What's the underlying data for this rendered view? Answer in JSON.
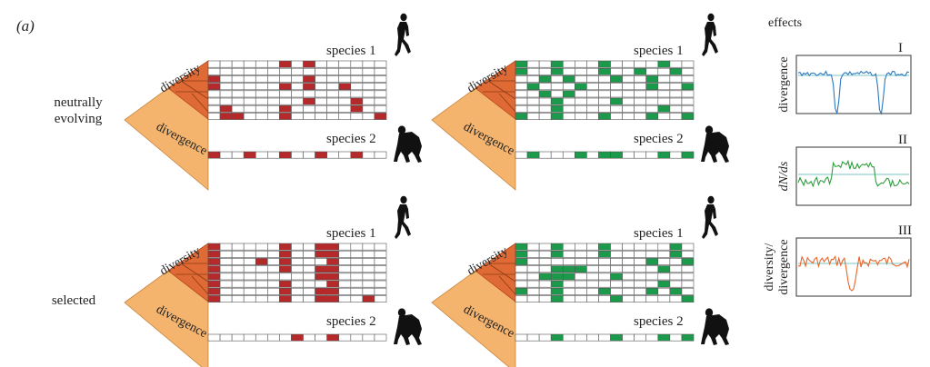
{
  "panel_label": "(a)",
  "row_labels": {
    "neutral_line1": "neutrally",
    "neutral_line2": "evolving",
    "selected": "selected"
  },
  "tree_labels": {
    "diversity": "diversity",
    "divergence": "divergence"
  },
  "species_labels": {
    "species1": "species 1",
    "species2": "species 2"
  },
  "effects": {
    "title": "effects",
    "plots": [
      {
        "numeral": "I",
        "ylabel_lines": [
          "divergence"
        ]
      },
      {
        "numeral": "II",
        "ylabel_lines": [
          "dN/ds"
        ]
      },
      {
        "numeral": "III",
        "ylabel_lines": [
          "diversity/",
          "divergence"
        ]
      }
    ]
  },
  "colors": {
    "red_site": "#b5292b",
    "green_site": "#1a9a4a",
    "tree_light": "#f5b46e",
    "tree_dark": "#e06a35",
    "plot_blue": "#2a78c0",
    "plot_green": "#2e9e3e",
    "plot_orange": "#e8662b",
    "baseline": "#4bb3b3"
  },
  "sequence_panels": [
    {
      "id": "neutral-red",
      "color": "red_site",
      "polymorphic_sites": [
        [
          6,
          8
        ],
        [],
        [
          0,
          8
        ],
        [
          0,
          6,
          8,
          11
        ],
        [],
        [
          8,
          12
        ],
        [
          1,
          6,
          12
        ],
        [
          1,
          2,
          6,
          14
        ]
      ],
      "species2_sites": [
        0,
        3,
        6,
        9,
        12
      ]
    },
    {
      "id": "neutral-green",
      "color": "green_site",
      "polymorphic_sites": [
        [
          0,
          3,
          7,
          12
        ],
        [
          0,
          3,
          7,
          10,
          13
        ],
        [
          2,
          4,
          8,
          11
        ],
        [
          1,
          5,
          11,
          14
        ],
        [
          2,
          4
        ],
        [
          3,
          8
        ],
        [
          3,
          12
        ],
        [
          0,
          3,
          7,
          11,
          14
        ]
      ],
      "species2_sites": [
        1,
        5,
        7,
        8,
        12,
        14
      ]
    },
    {
      "id": "selected-red",
      "color": "red_site",
      "polymorphic_sites": [
        [
          0,
          6,
          9,
          10
        ],
        [
          0,
          6,
          9,
          10
        ],
        [
          0,
          4,
          6,
          10
        ],
        [
          0,
          6,
          9,
          10
        ],
        [
          0,
          9,
          10
        ],
        [
          0,
          6,
          10
        ],
        [
          0,
          6,
          9,
          10
        ],
        [
          0,
          6,
          9,
          10,
          13
        ]
      ],
      "species2_sites": [
        7,
        10
      ]
    },
    {
      "id": "selected-green",
      "color": "green_site",
      "polymorphic_sites": [
        [
          0,
          3,
          7,
          13
        ],
        [
          0,
          3,
          7,
          13
        ],
        [
          0,
          11,
          14
        ],
        [
          3,
          4,
          5,
          12
        ],
        [
          2,
          3,
          4,
          8
        ],
        [
          3,
          12
        ],
        [
          0,
          3,
          7,
          11,
          13
        ],
        [
          3,
          8,
          14
        ]
      ],
      "species2_sites": [
        3,
        8,
        12,
        14
      ]
    }
  ]
}
